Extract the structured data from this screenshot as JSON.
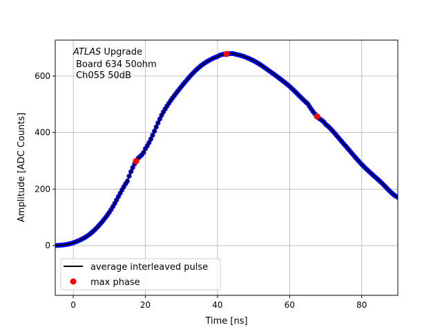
{
  "chart_data": {
    "type": "line",
    "xlabel": "Time [ns]",
    "ylabel": "Amplitude [ADC Counts]",
    "xlim": [
      -5,
      90
    ],
    "ylim": [
      -176,
      727
    ],
    "xticks": [
      0,
      20,
      40,
      60,
      80
    ],
    "yticks": [
      0,
      200,
      400,
      600
    ],
    "grid": true,
    "legend_position": "bottom-left",
    "annotation": {
      "italic": "ATLAS",
      "rest": " Upgrade",
      "line2": "Board 634 50ohm",
      "line3": "Ch055 50dB"
    },
    "series": [
      {
        "name": "average interleaved pulse",
        "color": "#000000",
        "marker_color": "#0000ff",
        "x": [
          -5,
          0,
          5,
          10,
          15,
          17.4,
          20,
          25,
          30,
          35,
          40,
          42.5,
          45,
          50,
          55,
          60,
          65,
          67.6,
          70,
          75,
          80,
          85,
          90
        ],
        "y": [
          0,
          10,
          45,
          118,
          228,
          299,
          343,
          473,
          563,
          632,
          669,
          678,
          677,
          654,
          612,
          563,
          502,
          457,
          429,
          360,
          287,
          228,
          171
        ]
      },
      {
        "name": "max phase",
        "color": "#ff0000",
        "type": "scatter",
        "x": [
          17.4,
          42.5,
          67.6
        ],
        "y": [
          299,
          678,
          457
        ]
      }
    ]
  }
}
